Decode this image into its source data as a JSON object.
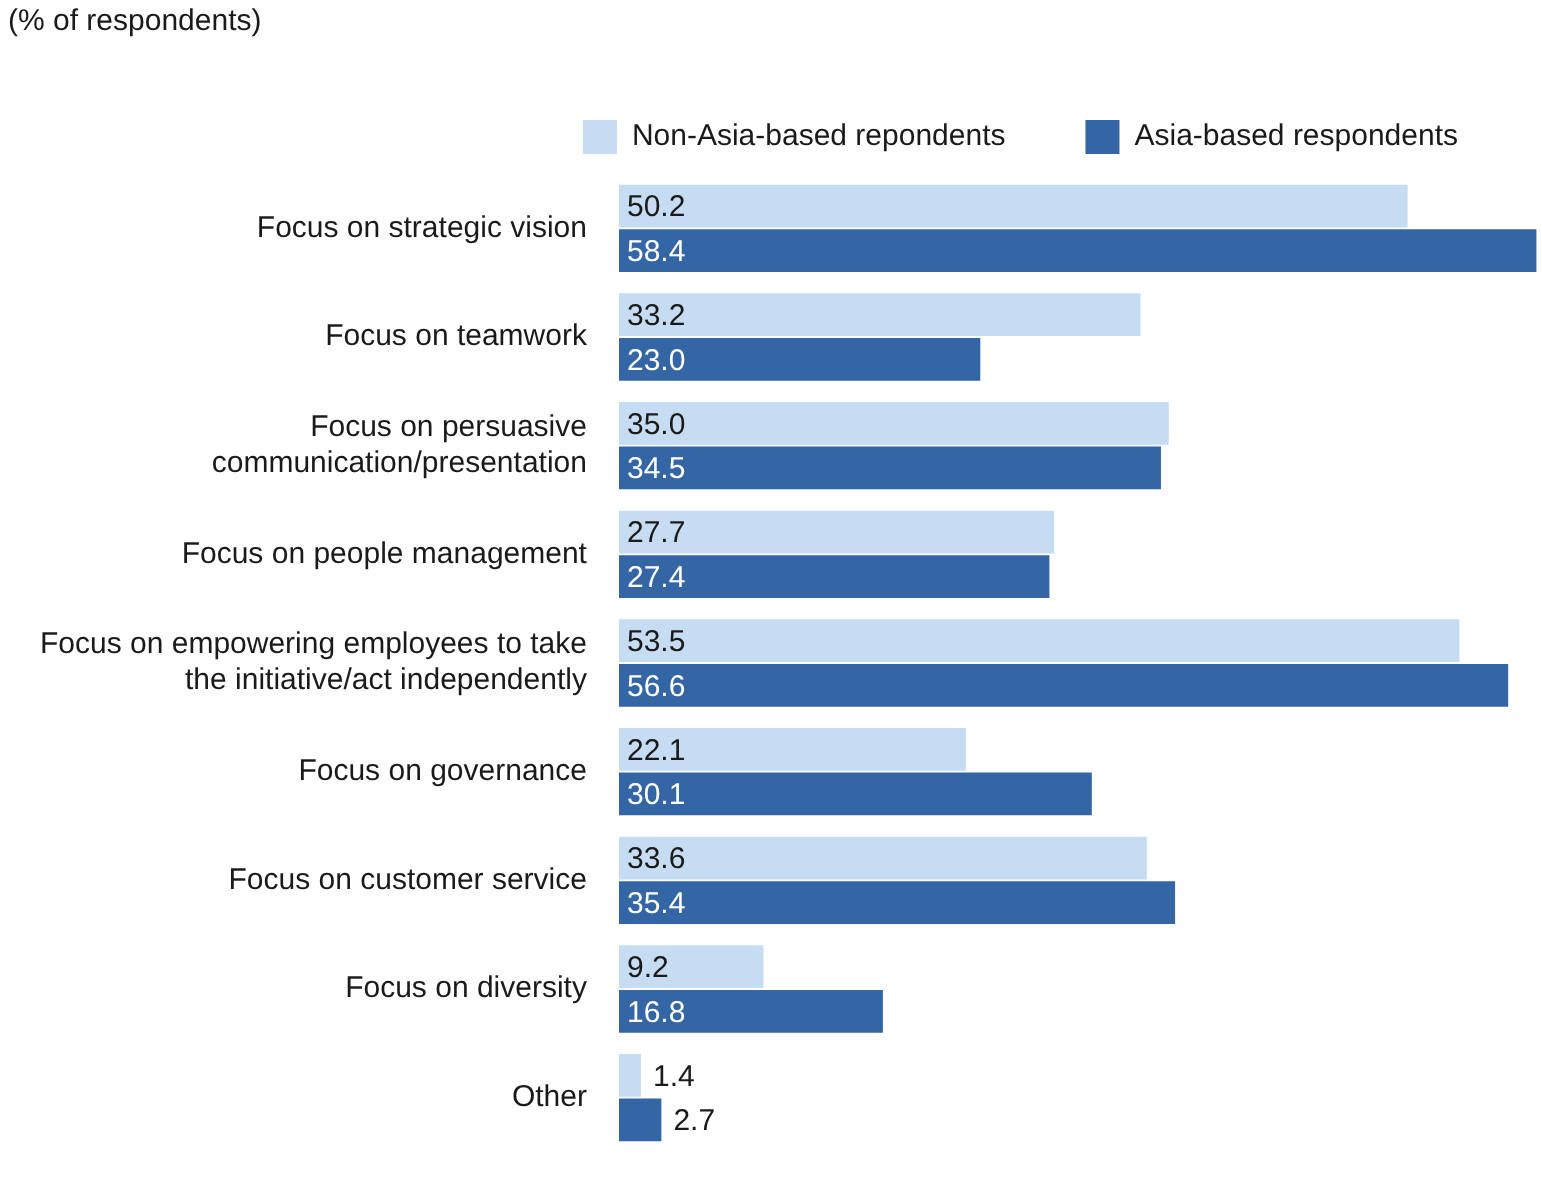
{
  "chart_data": {
    "type": "bar",
    "orientation": "horizontal",
    "subtitle": "(% of respondents)",
    "categories": [
      "Focus on strategic vision",
      "Focus on teamwork",
      "Focus on persuasive communication/presentation",
      "Focus on people management",
      "Focus on empowering employees to take the initiative/act independently",
      "Focus on governance",
      "Focus on customer service",
      "Focus on diversity",
      "Other"
    ],
    "series": [
      {
        "name": "Non-Asia-based repondents",
        "color": "#c5dcf2",
        "values": [
          50.2,
          33.2,
          35.0,
          27.7,
          53.5,
          22.1,
          33.6,
          9.2,
          1.4
        ],
        "value_labels": [
          "50.2",
          "33.2",
          "35.0",
          "27.7",
          "53.5",
          "22.1",
          "33.6",
          "9.2",
          "1.4"
        ]
      },
      {
        "name": "Asia-based respondents",
        "color": "#3466a6",
        "values": [
          58.4,
          23.0,
          34.5,
          27.4,
          56.6,
          30.1,
          35.4,
          16.8,
          2.7
        ],
        "value_labels": [
          "58.4",
          "23.0",
          "34.5",
          "27.4",
          "56.6",
          "30.1",
          "35.4",
          "16.8",
          "2.7"
        ]
      }
    ],
    "xlim": [
      0,
      58.5
    ],
    "legend": "top",
    "tick_labels": "y"
  }
}
